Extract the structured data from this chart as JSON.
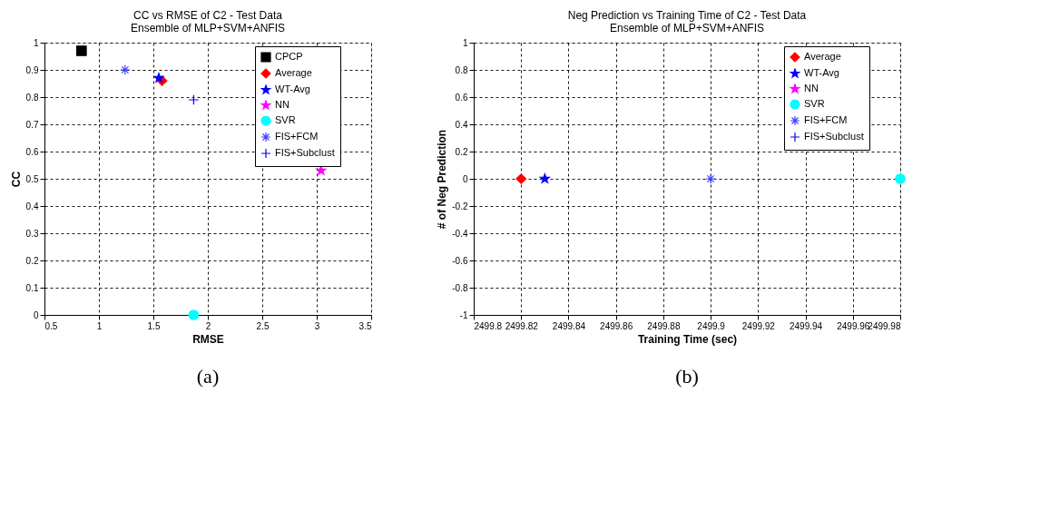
{
  "chart_data": [
    {
      "type": "scatter",
      "title": "CC vs RMSE of C2 - Test Data\nEnsemble of MLP+SVM+ANFIS",
      "xlabel": "RMSE",
      "ylabel": "CC",
      "xlim": [
        0.5,
        3.5
      ],
      "xticks": [
        0.5,
        1,
        1.5,
        2,
        2.5,
        3,
        3.5
      ],
      "ylim": [
        0,
        1
      ],
      "yticks": [
        0,
        0.1,
        0.2,
        0.3,
        0.4,
        0.5,
        0.6,
        0.7,
        0.8,
        0.9,
        1
      ],
      "grid": true,
      "legend": "top right",
      "annotations": [
        "(a)"
      ],
      "series": [
        {
          "name": "CPCP",
          "color": "#000000",
          "marker": "square",
          "x": [
            0.84
          ],
          "values": [
            0.97
          ]
        },
        {
          "name": "Average",
          "color": "#ff0000",
          "marker": "diamond",
          "x": [
            1.58
          ],
          "values": [
            0.86
          ]
        },
        {
          "name": "WT-Avg",
          "color": "#0000ff",
          "marker": "star",
          "x": [
            1.55
          ],
          "values": [
            0.87
          ]
        },
        {
          "name": "NN",
          "color": "#ff00ff",
          "marker": "star",
          "x": [
            3.04
          ],
          "values": [
            0.53
          ]
        },
        {
          "name": "SVR",
          "color": "#00ffff",
          "marker": "circle",
          "x": [
            1.87
          ],
          "values": [
            0.0
          ]
        },
        {
          "name": "FIS+FCM",
          "color": "#4040ff",
          "marker": "cross",
          "x": [
            1.24
          ],
          "values": [
            0.9
          ]
        },
        {
          "name": "FIS+Subclust",
          "color": "#0000ff",
          "x": [
            1.87
          ],
          "values": [
            0.79
          ]
        }
      ]
    },
    {
      "type": "scatter",
      "title": "Neg Prediction vs Training Time of C2 - Test Data\nEnsemble of MLP+SVM+ANFIS",
      "xlabel": "Training Time (sec)",
      "ylabel": "# of Neg Prediction",
      "xlim": [
        2499.8,
        2499.98
      ],
      "xticks": [
        2499.8,
        2499.82,
        2499.84,
        2499.86,
        2499.88,
        2499.9,
        2499.92,
        2499.94,
        2499.96,
        2499.98
      ],
      "ylim": [
        -1,
        1
      ],
      "yticks": [
        -1,
        -0.8,
        -0.6,
        -0.4,
        -0.2,
        0,
        0.2,
        0.4,
        0.6,
        0.8,
        1
      ],
      "grid": true,
      "legend": "top right",
      "annotations": [
        "(b)"
      ],
      "series": [
        {
          "name": "Average",
          "color": "#ff0000",
          "marker": "diamond",
          "x": [
            2499.82
          ],
          "values": [
            0
          ]
        },
        {
          "name": "WT-Avg",
          "color": "#0000ff",
          "marker": "star",
          "x": [
            2499.83
          ],
          "values": [
            0
          ]
        },
        {
          "name": "NN",
          "color": "#ff00ff",
          "marker": "star",
          "x": [
            null
          ],
          "values": [
            null
          ]
        },
        {
          "name": "SVR",
          "color": "#00ffff",
          "marker": "circle",
          "x": [
            2499.98
          ],
          "values": [
            0
          ]
        },
        {
          "name": "FIS+FCM",
          "color": "#4040ff",
          "marker": "cross",
          "x": [
            2499.9
          ],
          "values": [
            0
          ]
        },
        {
          "name": "FIS+Subclust",
          "color": "#0000ff",
          "x": [
            null
          ],
          "values": [
            null
          ]
        }
      ]
    }
  ]
}
